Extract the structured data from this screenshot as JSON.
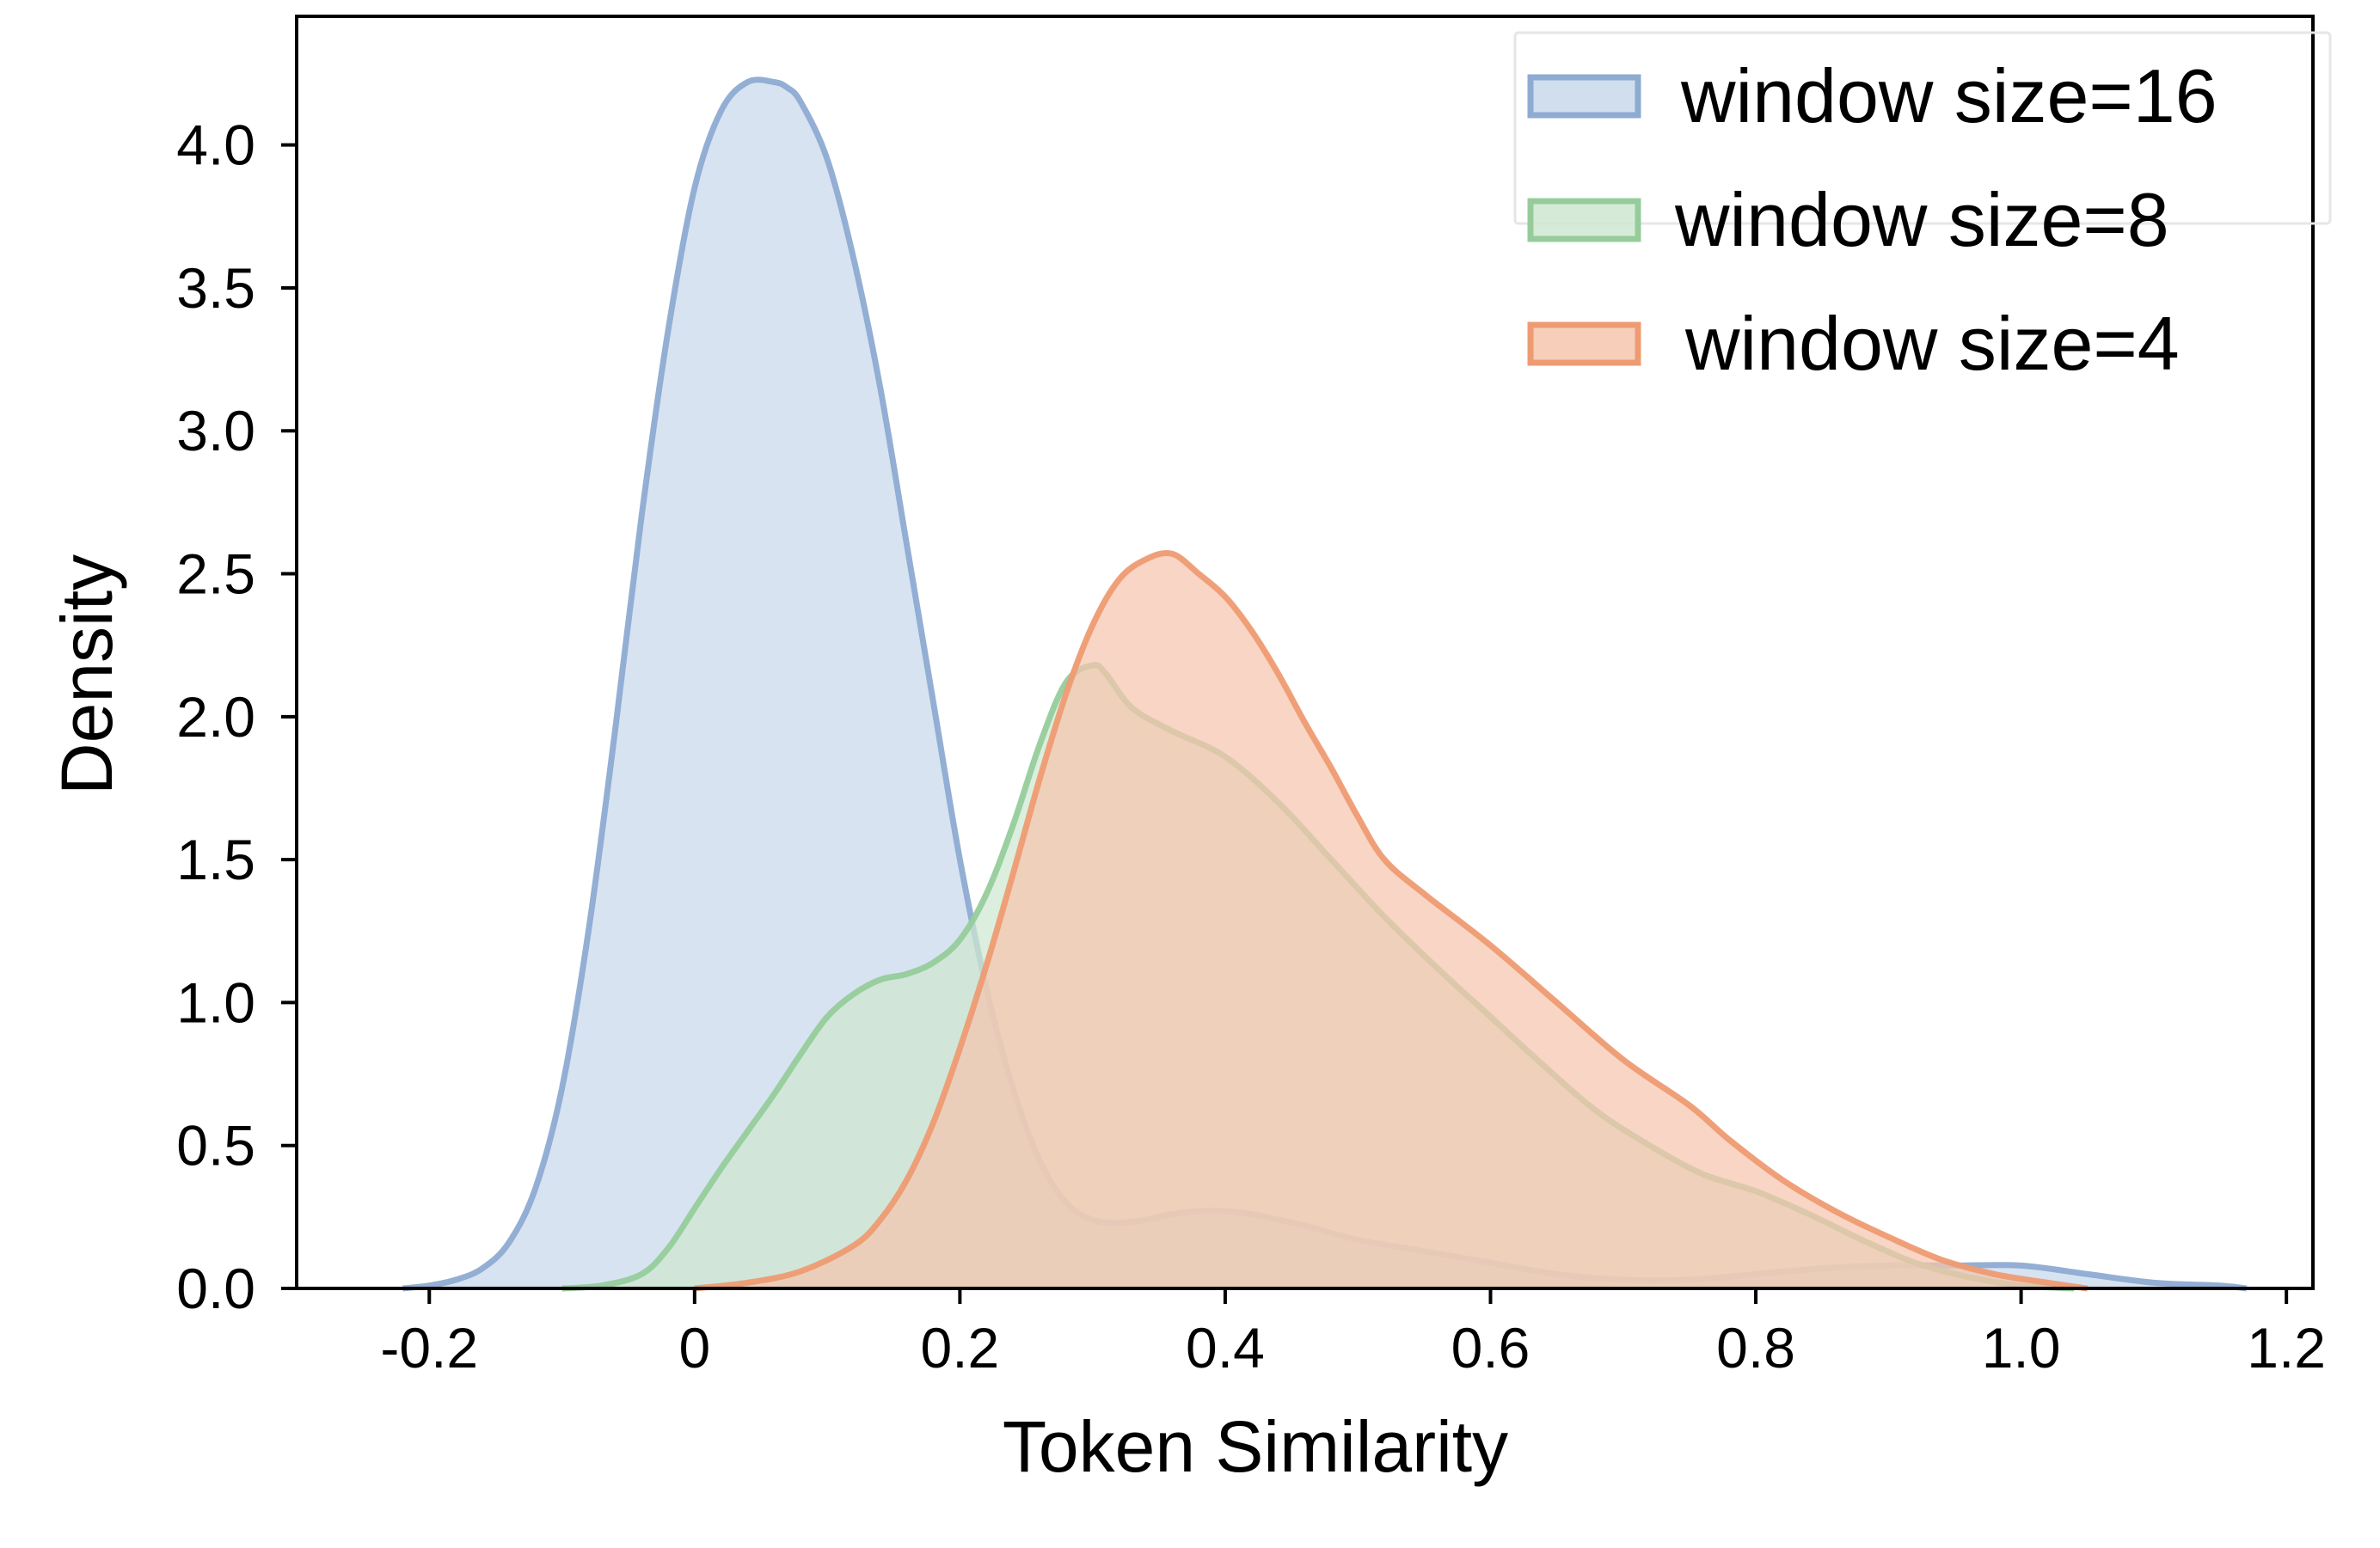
{
  "chart_data": {
    "type": "area",
    "title": "",
    "xlabel": "Token Similarity",
    "ylabel": "Density",
    "xlim": [
      -0.3,
      1.22
    ],
    "ylim": [
      0,
      4.45
    ],
    "xticks": [
      -0.2,
      0,
      0.2,
      0.4,
      0.6,
      0.8,
      1.0,
      1.2
    ],
    "xtick_labels": [
      "-0.2",
      "0",
      "0.2",
      "0.4",
      "0.6",
      "0.8",
      "1.0",
      "1.2"
    ],
    "yticks": [
      0.0,
      0.5,
      1.0,
      1.5,
      2.0,
      2.5,
      3.0,
      3.5,
      4.0
    ],
    "ytick_labels": [
      "0.0",
      "0.5",
      "1.0",
      "1.5",
      "2.0",
      "2.5",
      "3.0",
      "3.5",
      "4.0"
    ],
    "grid": false,
    "legend_position": "top-right",
    "series": [
      {
        "name": "window size=16",
        "stroke": "#8eabd2",
        "fill": "#c9d8eb",
        "x": [
          -0.22,
          -0.2,
          -0.18,
          -0.16,
          -0.14,
          -0.12,
          -0.1,
          -0.08,
          -0.06,
          -0.04,
          -0.02,
          0.0,
          0.02,
          0.04,
          0.06,
          0.07,
          0.08,
          0.1,
          0.12,
          0.14,
          0.16,
          0.18,
          0.2,
          0.22,
          0.24,
          0.26,
          0.28,
          0.3,
          0.32,
          0.34,
          0.36,
          0.38,
          0.4,
          0.42,
          0.44,
          0.46,
          0.5,
          0.55,
          0.6,
          0.65,
          0.7,
          0.75,
          0.8,
          0.85,
          0.9,
          0.95,
          1.0,
          1.05,
          1.1,
          1.15,
          1.17
        ],
        "y": [
          0.0,
          0.01,
          0.03,
          0.07,
          0.16,
          0.35,
          0.7,
          1.25,
          1.95,
          2.7,
          3.35,
          3.85,
          4.12,
          4.22,
          4.22,
          4.2,
          4.15,
          3.95,
          3.6,
          3.15,
          2.6,
          2.05,
          1.5,
          1.05,
          0.7,
          0.45,
          0.3,
          0.24,
          0.23,
          0.24,
          0.26,
          0.27,
          0.27,
          0.26,
          0.24,
          0.22,
          0.17,
          0.13,
          0.09,
          0.05,
          0.03,
          0.03,
          0.05,
          0.07,
          0.08,
          0.08,
          0.08,
          0.05,
          0.02,
          0.01,
          0.0
        ]
      },
      {
        "name": "window size=8",
        "stroke": "#96cc9b",
        "fill": "#cfe8d0",
        "x": [
          -0.1,
          -0.07,
          -0.04,
          -0.02,
          0.0,
          0.02,
          0.04,
          0.06,
          0.08,
          0.1,
          0.12,
          0.14,
          0.16,
          0.18,
          0.2,
          0.22,
          0.24,
          0.26,
          0.28,
          0.3,
          0.31,
          0.33,
          0.36,
          0.4,
          0.44,
          0.48,
          0.52,
          0.56,
          0.6,
          0.64,
          0.68,
          0.72,
          0.76,
          0.8,
          0.84,
          0.88,
          0.92,
          0.96,
          1.0,
          1.04
        ],
        "y": [
          0.0,
          0.01,
          0.05,
          0.14,
          0.28,
          0.42,
          0.55,
          0.68,
          0.82,
          0.95,
          1.03,
          1.08,
          1.1,
          1.14,
          1.22,
          1.38,
          1.62,
          1.9,
          2.12,
          2.18,
          2.15,
          2.03,
          1.95,
          1.86,
          1.7,
          1.5,
          1.3,
          1.12,
          0.95,
          0.78,
          0.62,
          0.5,
          0.4,
          0.34,
          0.26,
          0.17,
          0.09,
          0.04,
          0.01,
          0.0
        ]
      },
      {
        "name": "window size=4",
        "stroke": "#ee9b72",
        "fill": "#f5c5ad",
        "x": [
          0.0,
          0.04,
          0.08,
          0.12,
          0.14,
          0.16,
          0.18,
          0.2,
          0.22,
          0.24,
          0.26,
          0.28,
          0.3,
          0.32,
          0.34,
          0.36,
          0.38,
          0.4,
          0.42,
          0.44,
          0.46,
          0.48,
          0.5,
          0.52,
          0.55,
          0.6,
          0.65,
          0.7,
          0.75,
          0.78,
          0.82,
          0.86,
          0.9,
          0.94,
          0.98,
          1.02,
          1.05
        ],
        "y": [
          0.0,
          0.02,
          0.06,
          0.15,
          0.24,
          0.38,
          0.58,
          0.84,
          1.13,
          1.45,
          1.78,
          2.08,
          2.32,
          2.48,
          2.55,
          2.57,
          2.5,
          2.42,
          2.3,
          2.15,
          1.98,
          1.82,
          1.65,
          1.5,
          1.38,
          1.2,
          1.0,
          0.8,
          0.64,
          0.52,
          0.38,
          0.27,
          0.18,
          0.1,
          0.05,
          0.02,
          0.0
        ]
      }
    ]
  }
}
